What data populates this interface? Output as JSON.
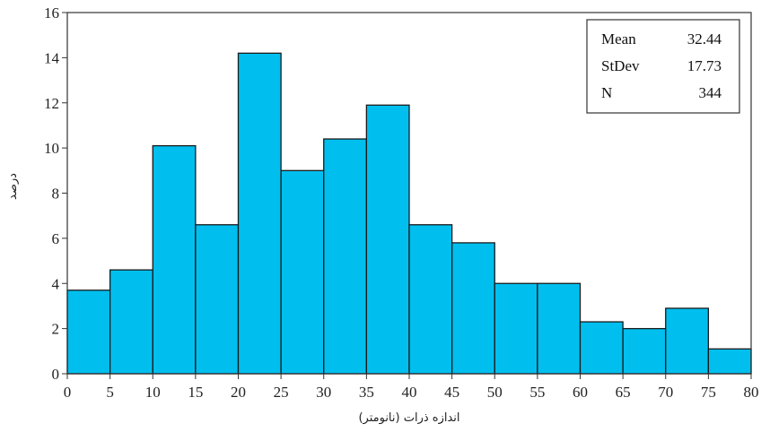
{
  "chart_data": {
    "type": "histogram",
    "bin_edges": [
      0,
      5,
      10,
      15,
      20,
      25,
      30,
      35,
      40,
      45,
      50,
      55,
      60,
      65,
      70,
      75,
      80
    ],
    "values": [
      3.7,
      4.6,
      10.1,
      6.6,
      14.2,
      9.0,
      10.4,
      11.9,
      6.6,
      5.8,
      4.0,
      4.0,
      2.3,
      2.0,
      2.9,
      1.1
    ],
    "bar_color": "#00bfef",
    "bar_edge_color": "#1a1a1a",
    "xlabel": "اندازه ذرات (نانومتر)",
    "ylabel": "درصد",
    "xlim": [
      0,
      80
    ],
    "ylim": [
      0,
      16
    ],
    "xticks": [
      0,
      5,
      10,
      15,
      20,
      25,
      30,
      35,
      40,
      45,
      50,
      55,
      60,
      65,
      70,
      75,
      80
    ],
    "yticks": [
      0,
      2,
      4,
      6,
      8,
      10,
      12,
      14,
      16
    ],
    "grid": false,
    "stats_box": {
      "placement": "top-right",
      "rows": [
        {
          "label": "Mean",
          "value": "32.44"
        },
        {
          "label": "StDev",
          "value": "17.73"
        },
        {
          "label": "N",
          "value": "344"
        }
      ]
    }
  }
}
